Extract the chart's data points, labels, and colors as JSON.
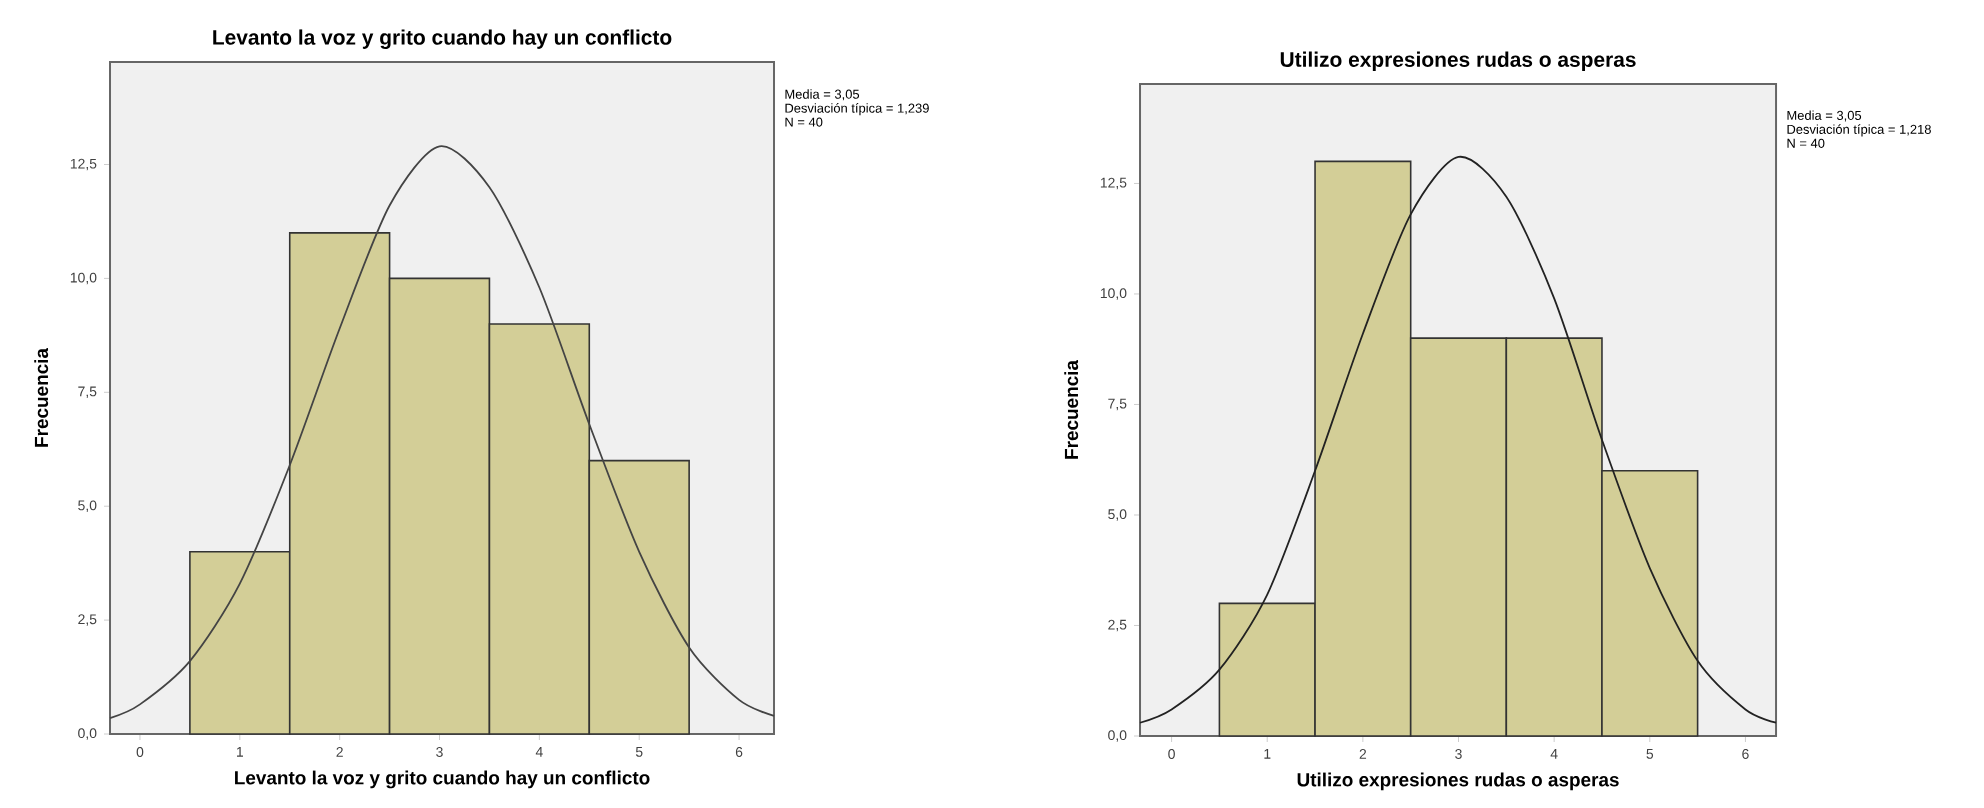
{
  "chart_data": [
    {
      "type": "histogram",
      "title": "Levanto la voz y grito cuando hay un  conflicto",
      "xlabel": "Levanto la voz y grito cuando hay un  conflicto",
      "ylabel": "Frecuencia",
      "bins": [
        0.5,
        1.5,
        2.5,
        3.5,
        4.5,
        5.5
      ],
      "series": [
        {
          "color": "#d3ce97",
          "values": [
            4,
            11,
            10,
            9,
            6
          ]
        },
        {
          "type": "line",
          "color": "#444444",
          "x": [
            -0.3,
            0,
            0.5,
            1,
            1.5,
            2,
            2.5,
            3,
            3.5,
            4,
            4.5,
            5,
            5.5,
            6,
            6.35
          ],
          "values": [
            0.35,
            0.65,
            1.6,
            3.3,
            5.9,
            8.9,
            11.6,
            12.9,
            12.0,
            9.8,
            6.8,
            4.0,
            1.9,
            0.75,
            0.4
          ]
        }
      ],
      "xlim": [
        -0.3,
        6.35
      ],
      "ylim": [
        0,
        14.75
      ],
      "xticks": [
        0,
        1,
        2,
        3,
        4,
        5,
        6
      ],
      "yticks": [
        {
          "value": 0,
          "label": "0,0"
        },
        {
          "value": 2.5,
          "label": "2,5"
        },
        {
          "value": 5,
          "label": "5,0"
        },
        {
          "value": 7.5,
          "label": "7,5"
        },
        {
          "value": 10,
          "label": "10,0"
        },
        {
          "value": 12.5,
          "label": "12,5"
        }
      ],
      "annotations": [
        "Media = 3,05",
        "Desviación típica = 1,239",
        "N = 40"
      ]
    },
    {
      "type": "histogram",
      "title": "Utilizo expresiones rudas o asperas",
      "xlabel": "Utilizo expresiones rudas o asperas",
      "ylabel": "Frecuencia",
      "bins": [
        0.5,
        1.5,
        2.5,
        3.5,
        4.5,
        5.5
      ],
      "series": [
        {
          "color": "#d3ce97",
          "values": [
            3,
            13,
            9,
            9,
            6
          ]
        },
        {
          "type": "line",
          "color": "#222222",
          "x": [
            -0.33,
            0,
            0.5,
            1,
            1.5,
            2,
            2.5,
            3,
            3.5,
            4,
            4.5,
            5,
            5.5,
            6,
            6.32
          ],
          "values": [
            0.3,
            0.6,
            1.5,
            3.2,
            6.0,
            9.1,
            11.8,
            13.1,
            12.2,
            9.9,
            6.7,
            3.8,
            1.7,
            0.6,
            0.3
          ]
        }
      ],
      "xlim": [
        -0.33,
        6.32
      ],
      "ylim": [
        0,
        14.75
      ],
      "xticks": [
        0,
        1,
        2,
        3,
        4,
        5,
        6
      ],
      "yticks": [
        {
          "value": 0,
          "label": "0,0"
        },
        {
          "value": 2.5,
          "label": "2,5"
        },
        {
          "value": 5,
          "label": "5,0"
        },
        {
          "value": 7.5,
          "label": "7,5"
        },
        {
          "value": 10,
          "label": "10,0"
        },
        {
          "value": 12.5,
          "label": "12,5"
        }
      ],
      "annotations": [
        "Media = 3,05",
        "Desviación típica = 1,218",
        "N = 40"
      ]
    }
  ]
}
